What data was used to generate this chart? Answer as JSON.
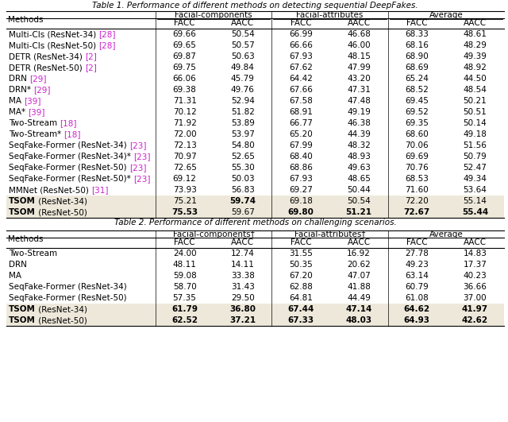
{
  "table1_title": "Table 1. Performance of different methods on detecting sequential DeepFakes.",
  "table2_title": "Table 2. Performance of different methods on challenging scenarios.",
  "col_headers": [
    "FACC",
    "AACC",
    "FACC",
    "AACC",
    "FACC",
    "AACC"
  ],
  "group_labels_t1": [
    "Facial-components",
    "Facial-attributes",
    "Average"
  ],
  "group_labels_t2": [
    "Facial-components†",
    "Facial-attributes†",
    "Average"
  ],
  "table1_rows": [
    {
      "method": "Multi-Cls (ResNet-34) [28]",
      "base": "Multi-Cls (ResNet-34) ",
      "ref": "[28]",
      "values": [
        "69.66",
        "50.54",
        "66.99",
        "46.68",
        "68.33",
        "48.61"
      ],
      "bold_vals": [],
      "bold_method": false,
      "highlight": false
    },
    {
      "method": "Multi-Cls (ResNet-50) [28]",
      "base": "Multi-Cls (ResNet-50) ",
      "ref": "[28]",
      "values": [
        "69.65",
        "50.57",
        "66.66",
        "46.00",
        "68.16",
        "48.29"
      ],
      "bold_vals": [],
      "bold_method": false,
      "highlight": false
    },
    {
      "method": "DETR (ResNet-34) [2]",
      "base": "DETR (ResNet-34) ",
      "ref": "[2]",
      "values": [
        "69.87",
        "50.63",
        "67.93",
        "48.15",
        "68.90",
        "49.39"
      ],
      "bold_vals": [],
      "bold_method": false,
      "highlight": false
    },
    {
      "method": "DETR (ResNet-50) [2]",
      "base": "DETR (ResNet-50) ",
      "ref": "[2]",
      "values": [
        "69.75",
        "49.84",
        "67.62",
        "47.99",
        "68.69",
        "48.92"
      ],
      "bold_vals": [],
      "bold_method": false,
      "highlight": false
    },
    {
      "method": "DRN [29]",
      "base": "DRN ",
      "ref": "[29]",
      "values": [
        "66.06",
        "45.79",
        "64.42",
        "43.20",
        "65.24",
        "44.50"
      ],
      "bold_vals": [],
      "bold_method": false,
      "highlight": false
    },
    {
      "method": "DRN* [29]",
      "base": "DRN* ",
      "ref": "[29]",
      "values": [
        "69.38",
        "49.76",
        "67.66",
        "47.31",
        "68.52",
        "48.54"
      ],
      "bold_vals": [],
      "bold_method": false,
      "highlight": false
    },
    {
      "method": "MA [39]",
      "base": "MA ",
      "ref": "[39]",
      "values": [
        "71.31",
        "52.94",
        "67.58",
        "47.48",
        "69.45",
        "50.21"
      ],
      "bold_vals": [],
      "bold_method": false,
      "highlight": false
    },
    {
      "method": "MA* [39]",
      "base": "MA* ",
      "ref": "[39]",
      "values": [
        "70.12",
        "51.82",
        "68.91",
        "49.19",
        "69.52",
        "50.51"
      ],
      "bold_vals": [],
      "bold_method": false,
      "highlight": false
    },
    {
      "method": "Two-Stream [18]",
      "base": "Two-Stream ",
      "ref": "[18]",
      "values": [
        "71.92",
        "53.89",
        "66.77",
        "46.38",
        "69.35",
        "50.14"
      ],
      "bold_vals": [],
      "bold_method": false,
      "highlight": false
    },
    {
      "method": "Two-Stream* [18]",
      "base": "Two-Stream* ",
      "ref": "[18]",
      "values": [
        "72.00",
        "53.97",
        "65.20",
        "44.39",
        "68.60",
        "49.18"
      ],
      "bold_vals": [],
      "bold_method": false,
      "highlight": false
    },
    {
      "method": "SeqFake-Former (ResNet-34) [23]",
      "base": "SeqFake-Former (ResNet-34) ",
      "ref": "[23]",
      "values": [
        "72.13",
        "54.80",
        "67.99",
        "48.32",
        "70.06",
        "51.56"
      ],
      "bold_vals": [],
      "bold_method": false,
      "highlight": false
    },
    {
      "method": "SeqFake-Former (ResNet-34)* [23]",
      "base": "SeqFake-Former (ResNet-34)* ",
      "ref": "[23]",
      "values": [
        "70.97",
        "52.65",
        "68.40",
        "48.93",
        "69.69",
        "50.79"
      ],
      "bold_vals": [],
      "bold_method": false,
      "highlight": false
    },
    {
      "method": "SeqFake-Former (ResNet-50) [23]",
      "base": "SeqFake-Former (ResNet-50) ",
      "ref": "[23]",
      "values": [
        "72.65",
        "55.30",
        "68.86",
        "49.63",
        "70.76",
        "52.47"
      ],
      "bold_vals": [],
      "bold_method": false,
      "highlight": false
    },
    {
      "method": "SeqFake-Former (ResNet-50)* [23]",
      "base": "SeqFake-Former (ResNet-50)* ",
      "ref": "[23]",
      "values": [
        "69.12",
        "50.03",
        "67.93",
        "48.65",
        "68.53",
        "49.34"
      ],
      "bold_vals": [],
      "bold_method": false,
      "highlight": false
    },
    {
      "method": "MMNet (ResNet-50) [31]",
      "base": "MMNet (ResNet-50) ",
      "ref": "[31]",
      "values": [
        "73.93",
        "56.83",
        "69.27",
        "50.44",
        "71.60",
        "53.64"
      ],
      "bold_vals": [],
      "bold_method": false,
      "highlight": false
    },
    {
      "method": "TSOM (ResNet-34)",
      "base": "TSOM",
      "ref": " (ResNet-34)",
      "values": [
        "75.21",
        "59.74",
        "69.18",
        "50.54",
        "72.20",
        "55.14"
      ],
      "bold_vals": [
        1
      ],
      "bold_method": true,
      "highlight": true
    },
    {
      "method": "TSOM (ResNet-50)",
      "base": "TSOM",
      "ref": " (ResNet-50)",
      "values": [
        "75.53",
        "59.67",
        "69.80",
        "51.21",
        "72.67",
        "55.44"
      ],
      "bold_vals": [
        0,
        2,
        3,
        4,
        5
      ],
      "bold_method": true,
      "highlight": true
    }
  ],
  "table2_rows": [
    {
      "method": "Two-Stream",
      "base": "Two-Stream",
      "ref": "",
      "values": [
        "24.00",
        "12.74",
        "31.55",
        "16.92",
        "27.78",
        "14.83"
      ],
      "bold_vals": [],
      "bold_method": false,
      "highlight": false
    },
    {
      "method": "DRN",
      "base": "DRN",
      "ref": "",
      "values": [
        "48.11",
        "14.11",
        "50.35",
        "20.62",
        "49.23",
        "17.37"
      ],
      "bold_vals": [],
      "bold_method": false,
      "highlight": false
    },
    {
      "method": "MA",
      "base": "MA",
      "ref": "",
      "values": [
        "59.08",
        "33.38",
        "67.20",
        "47.07",
        "63.14",
        "40.23"
      ],
      "bold_vals": [],
      "bold_method": false,
      "highlight": false
    },
    {
      "method": "SeqFake-Former (ResNet-34)",
      "base": "SeqFake-Former (ResNet-34)",
      "ref": "",
      "values": [
        "58.70",
        "31.43",
        "62.88",
        "41.88",
        "60.79",
        "36.66"
      ],
      "bold_vals": [],
      "bold_method": false,
      "highlight": false
    },
    {
      "method": "SeqFake-Former (ResNet-50)",
      "base": "SeqFake-Former (ResNet-50)",
      "ref": "",
      "values": [
        "57.35",
        "29.50",
        "64.81",
        "44.49",
        "61.08",
        "37.00"
      ],
      "bold_vals": [],
      "bold_method": false,
      "highlight": false
    },
    {
      "method": "TSOM (ResNet-34)",
      "base": "TSOM",
      "ref": " (ResNet-34)",
      "values": [
        "61.79",
        "36.80",
        "67.44",
        "47.14",
        "64.62",
        "41.97"
      ],
      "bold_vals": [
        0,
        1,
        2,
        3,
        4,
        5
      ],
      "bold_method": true,
      "highlight": true
    },
    {
      "method": "TSOM (ResNet-50)",
      "base": "TSOM",
      "ref": " (ResNet-50)",
      "values": [
        "62.52",
        "37.21",
        "67.33",
        "48.03",
        "64.93",
        "42.62"
      ],
      "bold_vals": [
        0,
        1,
        2,
        3,
        4,
        5
      ],
      "bold_method": true,
      "highlight": true
    }
  ],
  "highlight_color": "#ede8da",
  "ref_color": "#cc22cc",
  "text_color": "#000000",
  "bg_color": "#ffffff"
}
